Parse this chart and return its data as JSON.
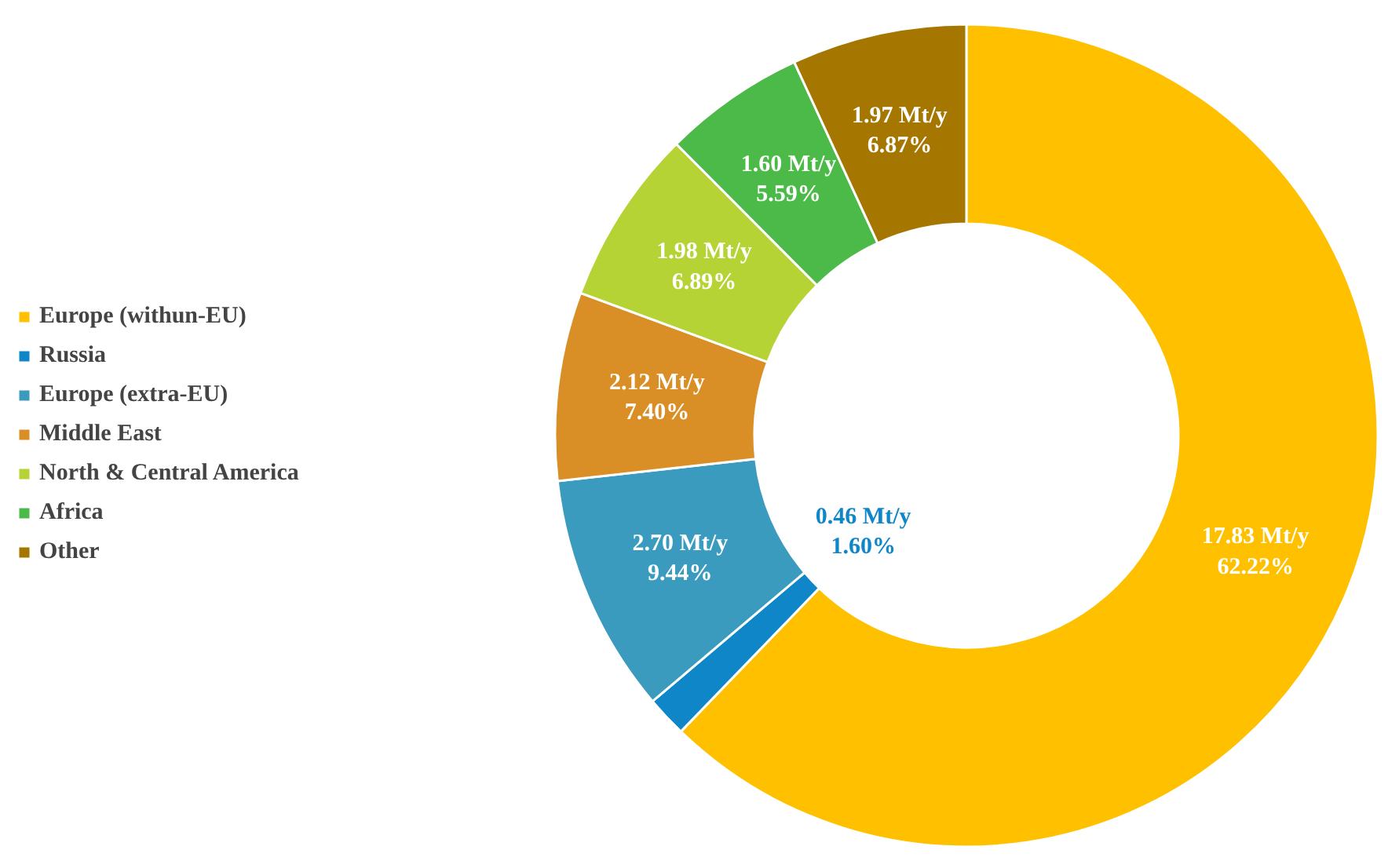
{
  "chart_data": {
    "type": "donut",
    "categories": [
      "Europe (withun-EU)",
      "Russia",
      "Europe (extra-EU)",
      "Middle East",
      "North & Central America",
      "Africa",
      "Other"
    ],
    "values": [
      17.83,
      0.46,
      2.7,
      2.12,
      1.98,
      1.6,
      1.97
    ],
    "colors": [
      "#ffc000",
      "#0e86c8",
      "#3a9bbf",
      "#d98f26",
      "#b5d334",
      "#4cba48",
      "#a57600"
    ],
    "value_labels": [
      "17.83 Mt/y\n62.22%",
      "0.46 Mt/y\n1.60%",
      "2.70 Mt/y\n9.44%",
      "2.12 Mt/y\n7.40%",
      "1.98 Mt/y\n6.89%",
      "1.60 Mt/y\n5.59%",
      "1.97 Mt/y\n6.87%"
    ],
    "legend": "left"
  }
}
